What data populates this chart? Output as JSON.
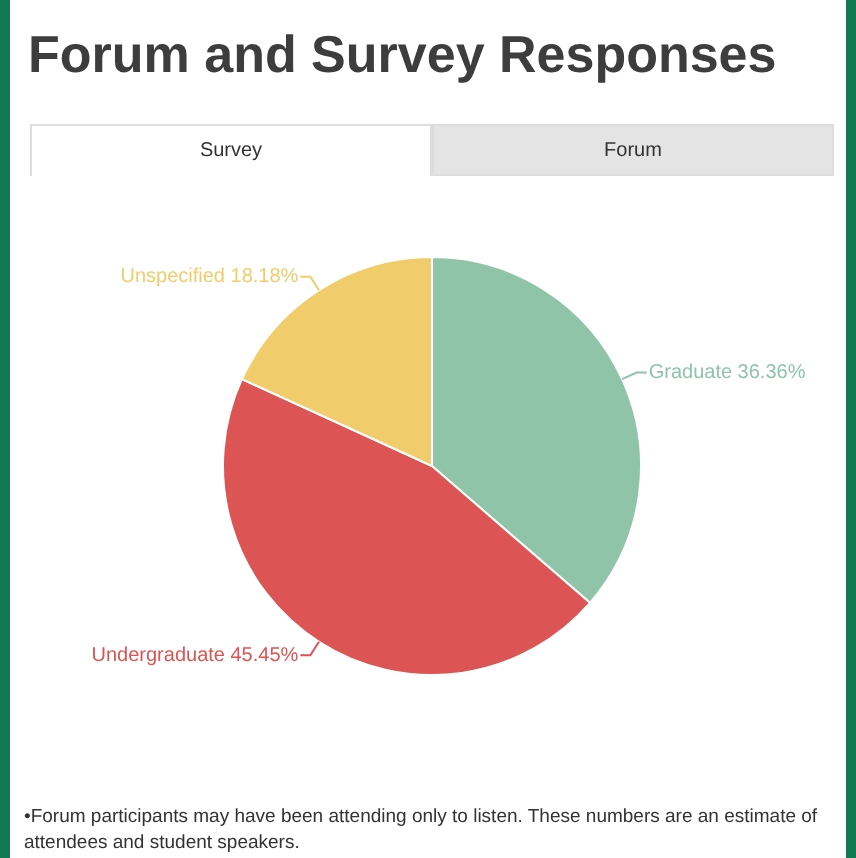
{
  "chart_data": {
    "type": "pie",
    "title": "Forum and Survey Responses",
    "categories": [
      "Graduate",
      "Undergraduate",
      "Unspecified"
    ],
    "values": [
      36.36,
      45.45,
      18.18
    ],
    "colors": [
      "#8fc4a8",
      "#dc5454",
      "#f0cc6a"
    ],
    "value_labels": [
      "36.36%",
      "45.45%",
      "18.18%"
    ],
    "legend": false,
    "annotations": [
      "Survey",
      "Forum",
      "•Forum participants may have been attending only to listen. These numbers are an estimate of attendees and student speakers."
    ]
  }
}
